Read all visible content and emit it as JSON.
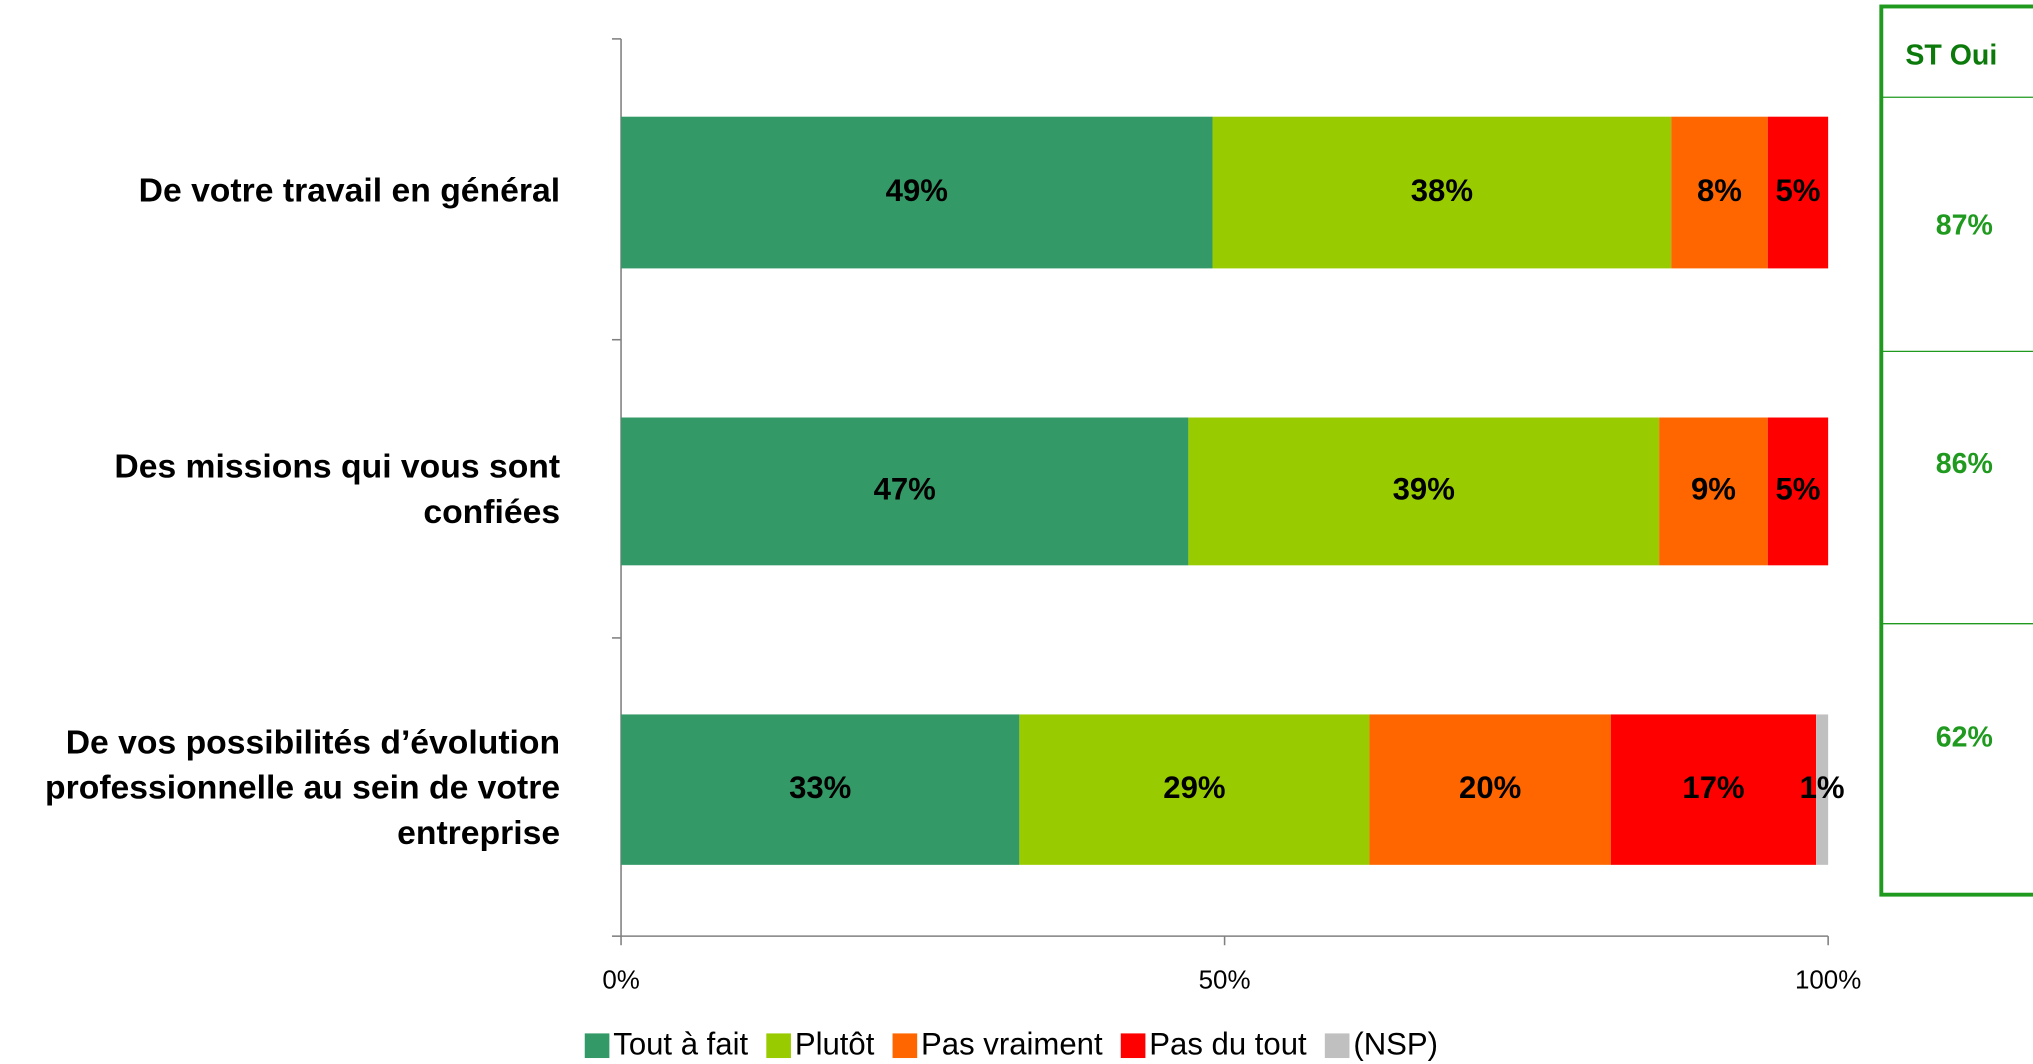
{
  "chart_data": {
    "type": "stacked_barh",
    "categories": [
      "De votre travail en général",
      "Des missions qui vous sont confiées",
      "De vos possibilités d’évolution professionnelle au sein de votre entreprise"
    ],
    "series": [
      {
        "name": "Tout à fait",
        "color": "#339966",
        "values": [
          49,
          47,
          33
        ],
        "value_labels": [
          "49%",
          "47%",
          "33%"
        ]
      },
      {
        "name": "Plutôt",
        "color": "#99cc00",
        "values": [
          38,
          39,
          29
        ],
        "value_labels": [
          "38%",
          "39%",
          "29%"
        ]
      },
      {
        "name": "Pas vraiment",
        "color": "#ff6600",
        "values": [
          8,
          9,
          20
        ],
        "value_labels": [
          "8%",
          "9%",
          "20%"
        ]
      },
      {
        "name": "Pas du tout",
        "color": "#ff0000",
        "values": [
          5,
          5,
          17
        ],
        "value_labels": [
          "5%",
          "5%",
          "17%"
        ]
      },
      {
        "name": "(NSP)",
        "color": "#c0c0c0",
        "values": [
          null,
          null,
          1
        ],
        "value_labels": [
          null,
          null,
          "1%"
        ]
      }
    ],
    "xlim": [
      0,
      100
    ],
    "xticks": [
      {
        "value": 0,
        "label": "0%"
      },
      {
        "value": 50,
        "label": "50%"
      },
      {
        "value": 100,
        "label": "100%"
      }
    ],
    "legend": "bottom",
    "side_table": {
      "title": "ST Oui",
      "color": "#1f9a1f",
      "values": [
        87,
        86,
        62
      ],
      "value_labels": [
        "87%",
        "86%",
        "62%"
      ]
    }
  }
}
